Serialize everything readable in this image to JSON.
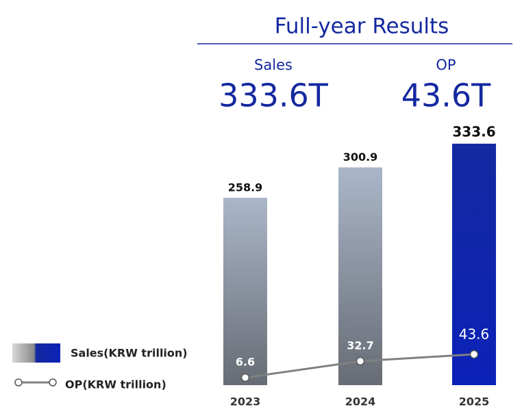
{
  "chart_data": {
    "type": "bar",
    "title": "Full-year Results",
    "headline": [
      {
        "label": "Sales",
        "value": "333.6T"
      },
      {
        "label": "OP",
        "value": "43.6T"
      }
    ],
    "categories": [
      "2023",
      "2024",
      "2025"
    ],
    "series": [
      {
        "name": "Sales(KRW trillion)",
        "type": "bar",
        "color": "#1428a0",
        "values": [
          258.9,
          300.9,
          333.6
        ]
      },
      {
        "name": "OP(KRW trillion)",
        "type": "line",
        "color": "#808080",
        "values": [
          6.6,
          32.7,
          43.6
        ]
      }
    ]
  }
}
